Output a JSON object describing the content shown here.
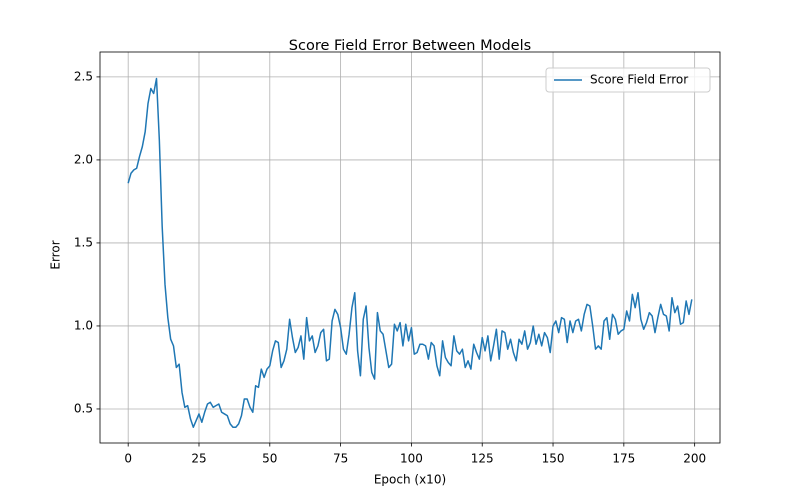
{
  "chart_data": {
    "type": "line",
    "title": "Score Field Error Between Models",
    "xlabel": "Epoch (x10)",
    "ylabel": "Error",
    "x": [
      0,
      1,
      2,
      3,
      4,
      5,
      6,
      7,
      8,
      9,
      10,
      11,
      12,
      13,
      14,
      15,
      16,
      17,
      18,
      19,
      20,
      21,
      22,
      23,
      24,
      25,
      26,
      27,
      28,
      29,
      30,
      31,
      32,
      33,
      34,
      35,
      36,
      37,
      38,
      39,
      40,
      41,
      42,
      43,
      44,
      45,
      46,
      47,
      48,
      49,
      50,
      51,
      52,
      53,
      54,
      55,
      56,
      57,
      58,
      59,
      60,
      61,
      62,
      63,
      64,
      65,
      66,
      67,
      68,
      69,
      70,
      71,
      72,
      73,
      74,
      75,
      76,
      77,
      78,
      79,
      80,
      81,
      82,
      83,
      84,
      85,
      86,
      87,
      88,
      89,
      90,
      91,
      92,
      93,
      94,
      95,
      96,
      97,
      98,
      99,
      100,
      101,
      102,
      103,
      104,
      105,
      106,
      107,
      108,
      109,
      110,
      111,
      112,
      113,
      114,
      115,
      116,
      117,
      118,
      119,
      120,
      121,
      122,
      123,
      124,
      125,
      126,
      127,
      128,
      129,
      130,
      131,
      132,
      133,
      134,
      135,
      136,
      137,
      138,
      139,
      140,
      141,
      142,
      143,
      144,
      145,
      146,
      147,
      148,
      149,
      150,
      151,
      152,
      153,
      154,
      155,
      156,
      157,
      158,
      159,
      160,
      161,
      162,
      163,
      164,
      165,
      166,
      167,
      168,
      169,
      170,
      171,
      172,
      173,
      174,
      175,
      176,
      177,
      178,
      179,
      180,
      181,
      182,
      183,
      184,
      185,
      186,
      187,
      188,
      189,
      190,
      191,
      192,
      193,
      194,
      195,
      196,
      197,
      198,
      199
    ],
    "series": [
      {
        "name": "Score Field Error",
        "color": "#1f77b4",
        "values": [
          1.86,
          1.92,
          1.94,
          1.95,
          2.02,
          2.08,
          2.17,
          2.34,
          2.43,
          2.4,
          2.49,
          2.12,
          1.6,
          1.25,
          1.05,
          0.92,
          0.88,
          0.75,
          0.77,
          0.6,
          0.51,
          0.52,
          0.44,
          0.39,
          0.43,
          0.47,
          0.42,
          0.48,
          0.53,
          0.54,
          0.51,
          0.52,
          0.53,
          0.48,
          0.47,
          0.46,
          0.41,
          0.39,
          0.39,
          0.41,
          0.46,
          0.56,
          0.56,
          0.51,
          0.48,
          0.64,
          0.63,
          0.74,
          0.69,
          0.74,
          0.76,
          0.85,
          0.91,
          0.9,
          0.75,
          0.79,
          0.86,
          1.04,
          0.93,
          0.84,
          0.87,
          0.94,
          0.8,
          1.05,
          0.91,
          0.94,
          0.84,
          0.88,
          0.96,
          0.98,
          0.79,
          0.8,
          1.03,
          1.1,
          1.07,
          0.99,
          0.86,
          0.83,
          0.95,
          1.11,
          1.2,
          0.85,
          0.7,
          1.04,
          1.12,
          0.87,
          0.72,
          0.68,
          1.08,
          0.97,
          0.95,
          0.85,
          0.75,
          0.77,
          1.01,
          0.97,
          1.02,
          0.88,
          1.01,
          0.91,
          0.99,
          0.83,
          0.84,
          0.89,
          0.89,
          0.88,
          0.8,
          0.9,
          0.88,
          0.76,
          0.7,
          0.91,
          0.81,
          0.78,
          0.76,
          0.94,
          0.85,
          0.83,
          0.86,
          0.75,
          0.79,
          0.74,
          0.89,
          0.84,
          0.8,
          0.93,
          0.85,
          0.94,
          0.79,
          0.88,
          0.98,
          0.8,
          0.97,
          0.96,
          0.86,
          0.92,
          0.84,
          0.79,
          0.92,
          0.89,
          0.97,
          0.86,
          0.9,
          1.0,
          0.89,
          0.95,
          0.88,
          0.96,
          0.93,
          0.84,
          1.0,
          1.03,
          0.96,
          1.05,
          1.04,
          0.9,
          1.03,
          0.96,
          1.03,
          1.04,
          0.97,
          1.07,
          1.13,
          1.12,
          1.0,
          0.86,
          0.88,
          0.86,
          1.03,
          1.05,
          0.92,
          1.07,
          1.04,
          0.95,
          0.97,
          0.98,
          1.09,
          1.03,
          1.19,
          1.11,
          1.2,
          1.04,
          0.98,
          1.02,
          1.08,
          1.06,
          0.96,
          1.05,
          1.13,
          1.07,
          1.06,
          0.97,
          1.17,
          1.08,
          1.12,
          1.01,
          1.02,
          1.15,
          1.07,
          1.16
        ]
      }
    ],
    "xlim": [
      -9.95,
      208.95
    ],
    "ylim": [
      0.295,
      2.65
    ],
    "xticks": [
      0,
      25,
      50,
      75,
      100,
      125,
      150,
      175,
      200
    ],
    "yticks": [
      0.5,
      {
        "value": 1,
        "label": "1.0"
      },
      1.5,
      {
        "value": 2,
        "label": "2.0"
      },
      2.5
    ],
    "grid": true,
    "legend": "upper right"
  }
}
